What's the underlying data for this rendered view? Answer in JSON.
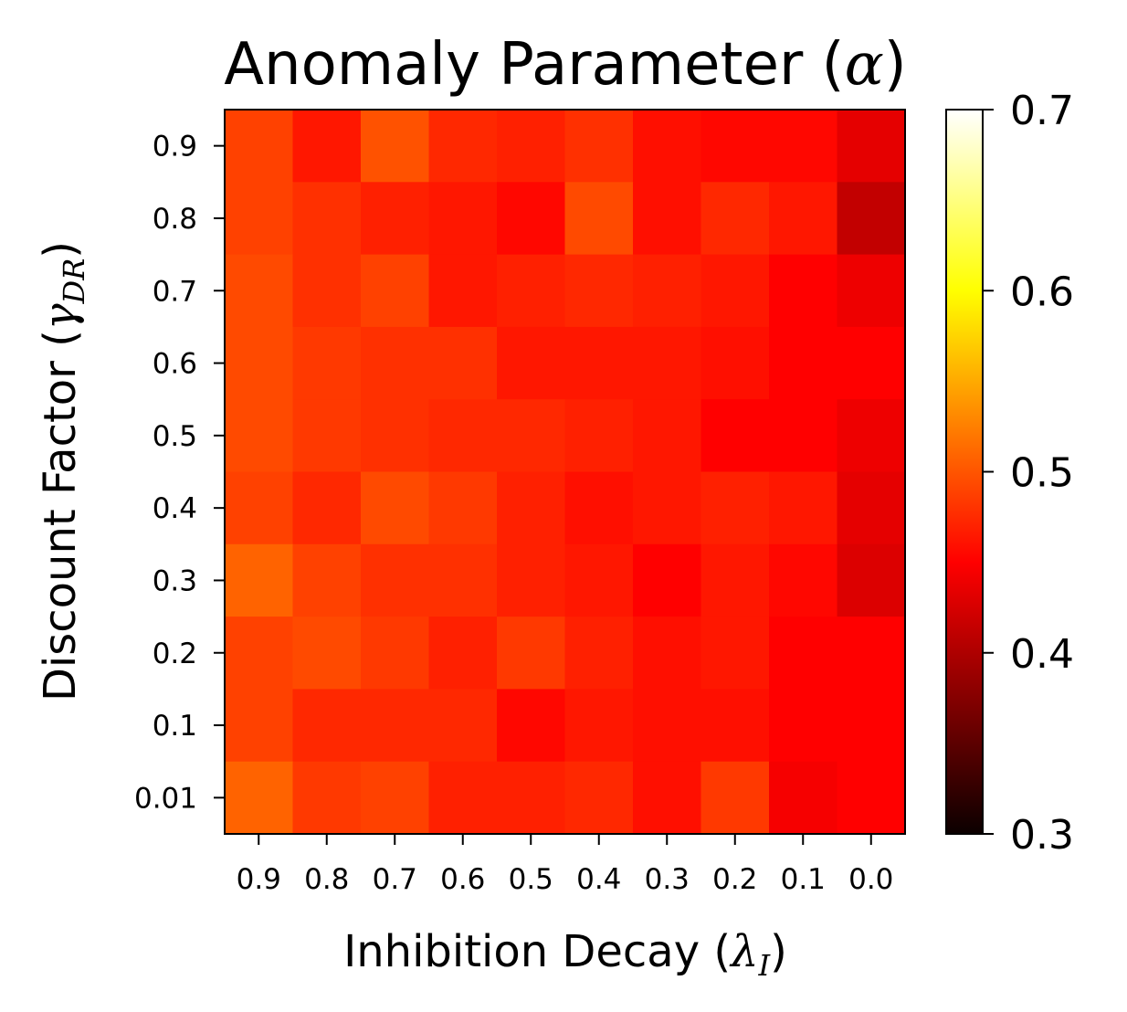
{
  "chart_data": {
    "type": "heatmap",
    "title": "Anomaly Parameter (α)",
    "title_parts": {
      "prefix": "Anomaly Parameter (",
      "symbol": "α",
      "suffix": ")"
    },
    "xlabel": "Inhibition Decay (λI)",
    "xlabel_parts": {
      "prefix": "Inhibition Decay (",
      "symbol": "λ",
      "sub": "I",
      "suffix": ")"
    },
    "ylabel": "Discount Factor (γDR)",
    "ylabel_parts": {
      "prefix": "Discount Factor (",
      "symbol": "γ",
      "sub": "DR",
      "suffix": ")"
    },
    "x_categories": [
      "0.9",
      "0.8",
      "0.7",
      "0.6",
      "0.5",
      "0.4",
      "0.3",
      "0.2",
      "0.1",
      "0.0"
    ],
    "y_categories": [
      "0.9",
      "0.8",
      "0.7",
      "0.6",
      "0.5",
      "0.4",
      "0.3",
      "0.2",
      "0.1",
      "0.01"
    ],
    "values": [
      [
        0.485,
        0.46,
        0.495,
        0.47,
        0.465,
        0.475,
        0.455,
        0.45,
        0.45,
        0.425
      ],
      [
        0.485,
        0.475,
        0.465,
        0.46,
        0.45,
        0.49,
        0.455,
        0.47,
        0.46,
        0.405
      ],
      [
        0.49,
        0.475,
        0.485,
        0.46,
        0.465,
        0.47,
        0.465,
        0.46,
        0.445,
        0.43
      ],
      [
        0.49,
        0.48,
        0.475,
        0.475,
        0.46,
        0.46,
        0.46,
        0.455,
        0.44,
        0.445
      ],
      [
        0.49,
        0.48,
        0.475,
        0.47,
        0.47,
        0.465,
        0.46,
        0.445,
        0.445,
        0.43
      ],
      [
        0.485,
        0.47,
        0.49,
        0.48,
        0.465,
        0.455,
        0.46,
        0.465,
        0.46,
        0.425
      ],
      [
        0.505,
        0.485,
        0.475,
        0.475,
        0.465,
        0.46,
        0.44,
        0.46,
        0.45,
        0.42
      ],
      [
        0.485,
        0.49,
        0.48,
        0.465,
        0.48,
        0.465,
        0.455,
        0.46,
        0.445,
        0.44
      ],
      [
        0.485,
        0.47,
        0.47,
        0.47,
        0.45,
        0.46,
        0.455,
        0.455,
        0.445,
        0.44
      ],
      [
        0.505,
        0.48,
        0.485,
        0.465,
        0.465,
        0.47,
        0.455,
        0.48,
        0.435,
        0.44
      ]
    ],
    "colorbar": {
      "colormap": "hot",
      "range": [
        0.3,
        0.7
      ],
      "ticks": [
        "0.3",
        "0.4",
        "0.5",
        "0.6",
        "0.7"
      ]
    },
    "grid": false,
    "legend": "none"
  }
}
